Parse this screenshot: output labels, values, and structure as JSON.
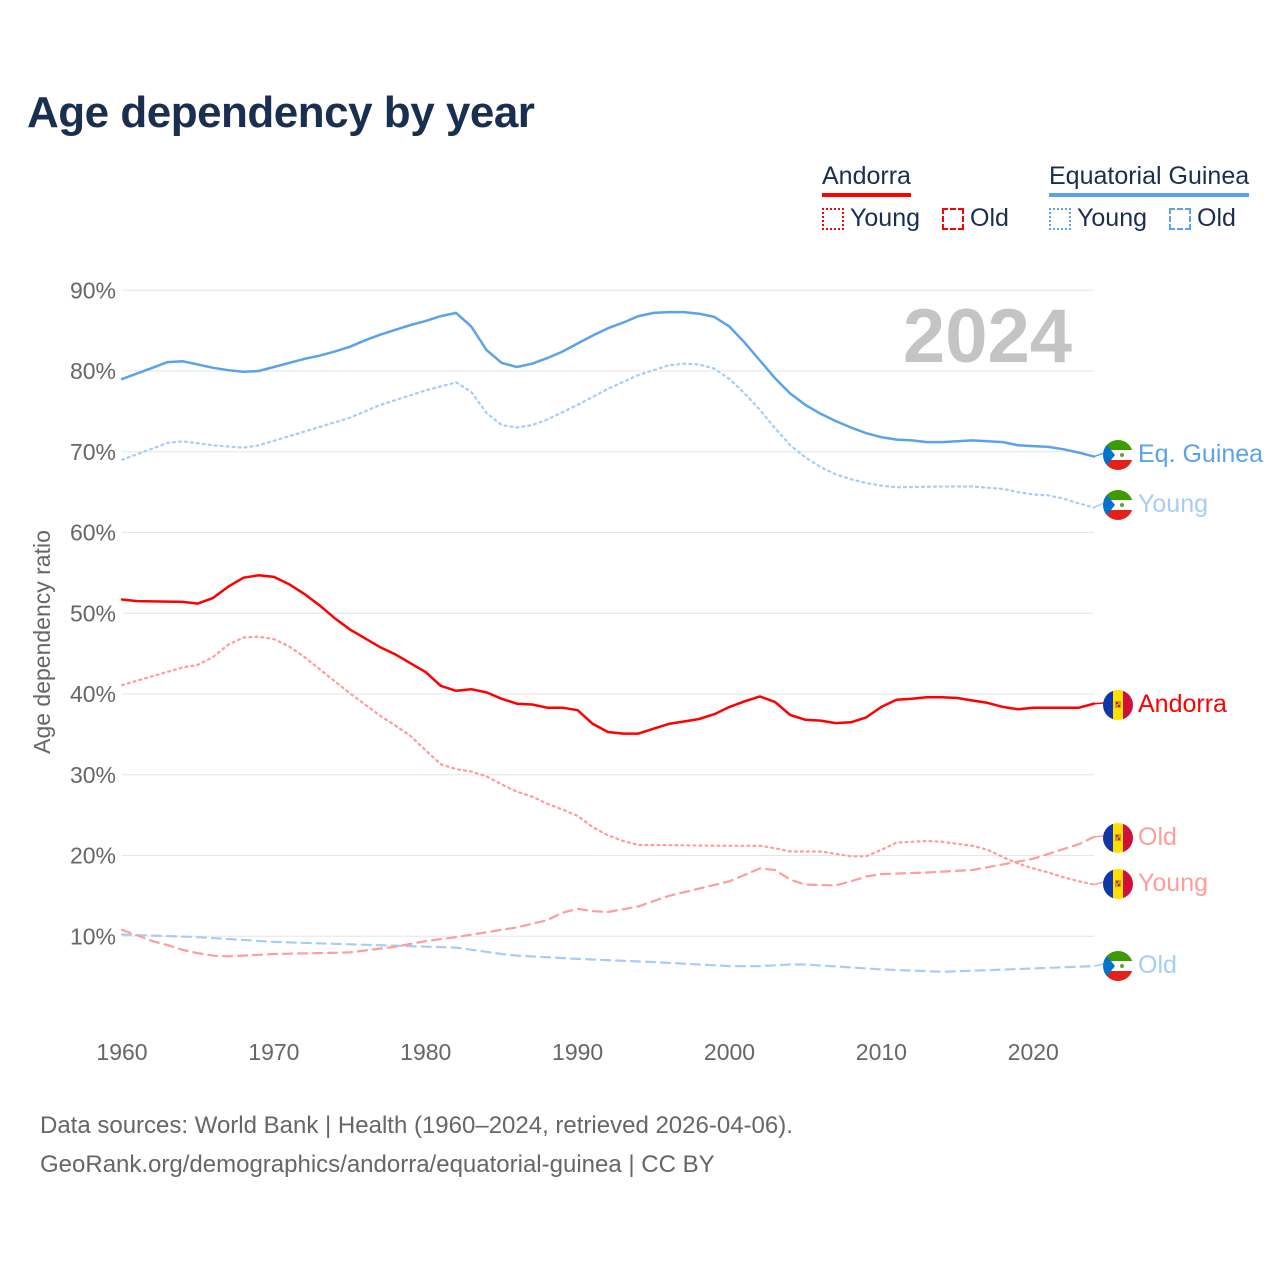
{
  "title": "Age dependency by year",
  "legend": {
    "andorra": {
      "label": "Andorra",
      "young": "Young",
      "old": "Old"
    },
    "eq_guinea": {
      "label": "Equatorial Guinea",
      "young": "Young",
      "old": "Old"
    }
  },
  "colors": {
    "andorra": "#ff0000",
    "andorra_light": "#ff9c9c",
    "eq_guinea": "#5ba3e8",
    "eq_guinea_light": "#a6cdf4",
    "title": "#1a2e4f"
  },
  "year_watermark": "2024",
  "footer": {
    "line1": "Data sources: World Bank | Health (1960–2024, retrieved 2026-04-06).",
    "line2": "GeoRank.org/demographics/andorra/equatorial-guinea | CC BY"
  },
  "chart_data": {
    "type": "line",
    "title": "Age dependency by year",
    "xlabel": "",
    "ylabel": "Age dependency ratio",
    "xlim": [
      1960,
      2024
    ],
    "ylim": [
      0,
      90
    ],
    "xticks": [
      1960,
      1970,
      1980,
      1990,
      2000,
      2010,
      2020
    ],
    "yticks": [
      10,
      20,
      30,
      40,
      50,
      60,
      70,
      80,
      90
    ],
    "ytick_labels": [
      "10%",
      "20%",
      "30%",
      "40%",
      "50%",
      "60%",
      "70%",
      "80%",
      "90%"
    ],
    "grid": true,
    "legend_position": "top-right",
    "series": [
      {
        "name": "Eq. Guinea",
        "country": "eq_guinea",
        "style": "solid",
        "end_label": "Eq. Guinea",
        "points": [
          [
            1960,
            79.0
          ],
          [
            1961,
            79.7
          ],
          [
            1962,
            80.4
          ],
          [
            1963,
            81.1
          ],
          [
            1964,
            81.2
          ],
          [
            1965,
            80.8
          ],
          [
            1966,
            80.4
          ],
          [
            1967,
            80.1
          ],
          [
            1968,
            79.9
          ],
          [
            1969,
            80.0
          ],
          [
            1970,
            80.5
          ],
          [
            1971,
            81.0
          ],
          [
            1972,
            81.5
          ],
          [
            1973,
            81.9
          ],
          [
            1974,
            82.4
          ],
          [
            1975,
            83.0
          ],
          [
            1976,
            83.8
          ],
          [
            1977,
            84.5
          ],
          [
            1978,
            85.1
          ],
          [
            1979,
            85.7
          ],
          [
            1980,
            86.2
          ],
          [
            1981,
            86.8
          ],
          [
            1982,
            87.2
          ],
          [
            1983,
            85.5
          ],
          [
            1984,
            82.6
          ],
          [
            1985,
            81.0
          ],
          [
            1986,
            80.5
          ],
          [
            1987,
            80.9
          ],
          [
            1988,
            81.6
          ],
          [
            1989,
            82.4
          ],
          [
            1990,
            83.4
          ],
          [
            1991,
            84.4
          ],
          [
            1992,
            85.3
          ],
          [
            1993,
            86.0
          ],
          [
            1994,
            86.8
          ],
          [
            1995,
            87.2
          ],
          [
            1996,
            87.3
          ],
          [
            1997,
            87.3
          ],
          [
            1998,
            87.1
          ],
          [
            1999,
            86.7
          ],
          [
            2000,
            85.5
          ],
          [
            2001,
            83.5
          ],
          [
            2002,
            81.3
          ],
          [
            2003,
            79.1
          ],
          [
            2004,
            77.2
          ],
          [
            2005,
            75.8
          ],
          [
            2006,
            74.7
          ],
          [
            2007,
            73.8
          ],
          [
            2008,
            73.0
          ],
          [
            2009,
            72.3
          ],
          [
            2010,
            71.8
          ],
          [
            2011,
            71.5
          ],
          [
            2012,
            71.4
          ],
          [
            2013,
            71.2
          ],
          [
            2014,
            71.2
          ],
          [
            2015,
            71.3
          ],
          [
            2016,
            71.4
          ],
          [
            2017,
            71.3
          ],
          [
            2018,
            71.2
          ],
          [
            2019,
            70.8
          ],
          [
            2020,
            70.7
          ],
          [
            2021,
            70.6
          ],
          [
            2022,
            70.3
          ],
          [
            2023,
            69.9
          ],
          [
            2024,
            69.4
          ]
        ]
      },
      {
        "name": "Eq. Guinea Young",
        "country": "eq_guinea",
        "style": "dotted",
        "end_label": "Young",
        "points": [
          [
            1960,
            69.0
          ],
          [
            1963,
            71.1
          ],
          [
            1964,
            71.3
          ],
          [
            1966,
            70.8
          ],
          [
            1968,
            70.5
          ],
          [
            1969,
            70.8
          ],
          [
            1972,
            72.5
          ],
          [
            1975,
            74.2
          ],
          [
            1977,
            75.8
          ],
          [
            1980,
            77.6
          ],
          [
            1982,
            78.6
          ],
          [
            1983,
            77.4
          ],
          [
            1984,
            74.8
          ],
          [
            1985,
            73.3
          ],
          [
            1986,
            73.0
          ],
          [
            1987,
            73.3
          ],
          [
            1988,
            74.0
          ],
          [
            1990,
            75.8
          ],
          [
            1992,
            77.8
          ],
          [
            1994,
            79.5
          ],
          [
            1996,
            80.7
          ],
          [
            1997,
            80.9
          ],
          [
            1998,
            80.8
          ],
          [
            1999,
            80.3
          ],
          [
            2000,
            79.0
          ],
          [
            2001,
            77.2
          ],
          [
            2002,
            75.2
          ],
          [
            2003,
            72.9
          ],
          [
            2004,
            70.8
          ],
          [
            2005,
            69.3
          ],
          [
            2006,
            68.1
          ],
          [
            2007,
            67.2
          ],
          [
            2008,
            66.6
          ],
          [
            2009,
            66.1
          ],
          [
            2010,
            65.8
          ],
          [
            2011,
            65.6
          ],
          [
            2014,
            65.7
          ],
          [
            2016,
            65.7
          ],
          [
            2018,
            65.4
          ],
          [
            2019,
            65.0
          ],
          [
            2020,
            64.7
          ],
          [
            2021,
            64.6
          ],
          [
            2022,
            64.2
          ],
          [
            2023,
            63.6
          ],
          [
            2024,
            63.1
          ]
        ]
      },
      {
        "name": "Eq. Guinea Old",
        "country": "eq_guinea",
        "style": "dashed",
        "end_label": "Old",
        "points": [
          [
            1960,
            10.2
          ],
          [
            1965,
            9.9
          ],
          [
            1970,
            9.3
          ],
          [
            1975,
            9.0
          ],
          [
            1980,
            8.7
          ],
          [
            1982,
            8.6
          ],
          [
            1985,
            7.8
          ],
          [
            1986,
            7.6
          ],
          [
            1990,
            7.2
          ],
          [
            1995,
            6.8
          ],
          [
            2000,
            6.3
          ],
          [
            2002,
            6.3
          ],
          [
            2004,
            6.5
          ],
          [
            2005,
            6.5
          ],
          [
            2010,
            5.9
          ],
          [
            2014,
            5.6
          ],
          [
            2020,
            6.0
          ],
          [
            2024,
            6.3
          ]
        ]
      },
      {
        "name": "Andorra",
        "country": "andorra",
        "style": "solid",
        "end_label": "Andorra",
        "points": [
          [
            1960,
            51.7
          ],
          [
            1961,
            51.5
          ],
          [
            1964,
            51.4
          ],
          [
            1965,
            51.2
          ],
          [
            1966,
            51.9
          ],
          [
            1967,
            53.3
          ],
          [
            1968,
            54.4
          ],
          [
            1969,
            54.7
          ],
          [
            1970,
            54.5
          ],
          [
            1971,
            53.6
          ],
          [
            1972,
            52.4
          ],
          [
            1973,
            51.0
          ],
          [
            1974,
            49.4
          ],
          [
            1975,
            48.0
          ],
          [
            1976,
            46.9
          ],
          [
            1977,
            45.8
          ],
          [
            1978,
            44.9
          ],
          [
            1979,
            43.8
          ],
          [
            1980,
            42.7
          ],
          [
            1981,
            41.0
          ],
          [
            1982,
            40.4
          ],
          [
            1983,
            40.6
          ],
          [
            1984,
            40.2
          ],
          [
            1985,
            39.4
          ],
          [
            1986,
            38.8
          ],
          [
            1987,
            38.7
          ],
          [
            1988,
            38.3
          ],
          [
            1989,
            38.3
          ],
          [
            1990,
            38.0
          ],
          [
            1991,
            36.3
          ],
          [
            1992,
            35.3
          ],
          [
            1993,
            35.1
          ],
          [
            1994,
            35.1
          ],
          [
            1995,
            35.7
          ],
          [
            1996,
            36.3
          ],
          [
            1997,
            36.6
          ],
          [
            1998,
            36.9
          ],
          [
            1999,
            37.5
          ],
          [
            2000,
            38.4
          ],
          [
            2001,
            39.1
          ],
          [
            2002,
            39.7
          ],
          [
            2003,
            39.0
          ],
          [
            2004,
            37.4
          ],
          [
            2005,
            36.8
          ],
          [
            2006,
            36.7
          ],
          [
            2007,
            36.4
          ],
          [
            2008,
            36.5
          ],
          [
            2009,
            37.1
          ],
          [
            2010,
            38.4
          ],
          [
            2011,
            39.3
          ],
          [
            2012,
            39.4
          ],
          [
            2013,
            39.6
          ],
          [
            2014,
            39.6
          ],
          [
            2015,
            39.5
          ],
          [
            2016,
            39.2
          ],
          [
            2017,
            38.9
          ],
          [
            2018,
            38.4
          ],
          [
            2019,
            38.1
          ],
          [
            2020,
            38.3
          ],
          [
            2021,
            38.3
          ],
          [
            2022,
            38.3
          ],
          [
            2023,
            38.3
          ],
          [
            2024,
            38.8
          ]
        ]
      },
      {
        "name": "Andorra Young",
        "country": "andorra",
        "style": "dotted",
        "end_label": "Young",
        "points": [
          [
            1960,
            41.1
          ],
          [
            1962,
            42.2
          ],
          [
            1964,
            43.3
          ],
          [
            1965,
            43.6
          ],
          [
            1966,
            44.6
          ],
          [
            1967,
            46.1
          ],
          [
            1968,
            47.0
          ],
          [
            1969,
            47.1
          ],
          [
            1970,
            46.8
          ],
          [
            1971,
            45.9
          ],
          [
            1972,
            44.6
          ],
          [
            1973,
            43.1
          ],
          [
            1974,
            41.6
          ],
          [
            1975,
            40.1
          ],
          [
            1976,
            38.7
          ],
          [
            1977,
            37.3
          ],
          [
            1978,
            36.1
          ],
          [
            1979,
            34.8
          ],
          [
            1980,
            33.0
          ],
          [
            1981,
            31.3
          ],
          [
            1982,
            30.7
          ],
          [
            1983,
            30.4
          ],
          [
            1984,
            29.8
          ],
          [
            1985,
            28.8
          ],
          [
            1986,
            27.9
          ],
          [
            1987,
            27.3
          ],
          [
            1988,
            26.4
          ],
          [
            1989,
            25.7
          ],
          [
            1990,
            24.9
          ],
          [
            1991,
            23.5
          ],
          [
            1992,
            22.5
          ],
          [
            1993,
            21.8
          ],
          [
            1994,
            21.3
          ],
          [
            1995,
            21.3
          ],
          [
            2000,
            21.2
          ],
          [
            2002,
            21.2
          ],
          [
            2003,
            20.9
          ],
          [
            2004,
            20.5
          ],
          [
            2006,
            20.5
          ],
          [
            2007,
            20.2
          ],
          [
            2008,
            19.9
          ],
          [
            2009,
            19.9
          ],
          [
            2010,
            20.7
          ],
          [
            2011,
            21.6
          ],
          [
            2013,
            21.8
          ],
          [
            2014,
            21.7
          ],
          [
            2016,
            21.2
          ],
          [
            2017,
            20.7
          ],
          [
            2018,
            19.8
          ],
          [
            2019,
            19.0
          ],
          [
            2020,
            18.4
          ],
          [
            2021,
            17.9
          ],
          [
            2022,
            17.3
          ],
          [
            2023,
            16.8
          ],
          [
            2024,
            16.4
          ]
        ]
      },
      {
        "name": "Andorra Old",
        "country": "andorra",
        "style": "dashed",
        "end_label": "Old",
        "points": [
          [
            1960,
            10.8
          ],
          [
            1961,
            10.1
          ],
          [
            1962,
            9.4
          ],
          [
            1963,
            8.9
          ],
          [
            1964,
            8.3
          ],
          [
            1965,
            7.9
          ],
          [
            1966,
            7.6
          ],
          [
            1967,
            7.5
          ],
          [
            1968,
            7.6
          ],
          [
            1970,
            7.8
          ],
          [
            1975,
            8.0
          ],
          [
            1978,
            8.7
          ],
          [
            1980,
            9.4
          ],
          [
            1982,
            9.9
          ],
          [
            1984,
            10.5
          ],
          [
            1986,
            11.1
          ],
          [
            1988,
            12.0
          ],
          [
            1989,
            12.9
          ],
          [
            1990,
            13.4
          ],
          [
            1991,
            13.1
          ],
          [
            1992,
            13.0
          ],
          [
            1994,
            13.7
          ],
          [
            1996,
            15.0
          ],
          [
            1998,
            15.9
          ],
          [
            2000,
            16.8
          ],
          [
            2002,
            18.4
          ],
          [
            2003,
            18.2
          ],
          [
            2004,
            17.0
          ],
          [
            2005,
            16.4
          ],
          [
            2007,
            16.3
          ],
          [
            2008,
            16.8
          ],
          [
            2009,
            17.4
          ],
          [
            2010,
            17.7
          ],
          [
            2013,
            17.9
          ],
          [
            2016,
            18.2
          ],
          [
            2018,
            18.9
          ],
          [
            2020,
            19.6
          ],
          [
            2022,
            20.8
          ],
          [
            2023,
            21.4
          ],
          [
            2024,
            22.3
          ]
        ]
      }
    ]
  }
}
